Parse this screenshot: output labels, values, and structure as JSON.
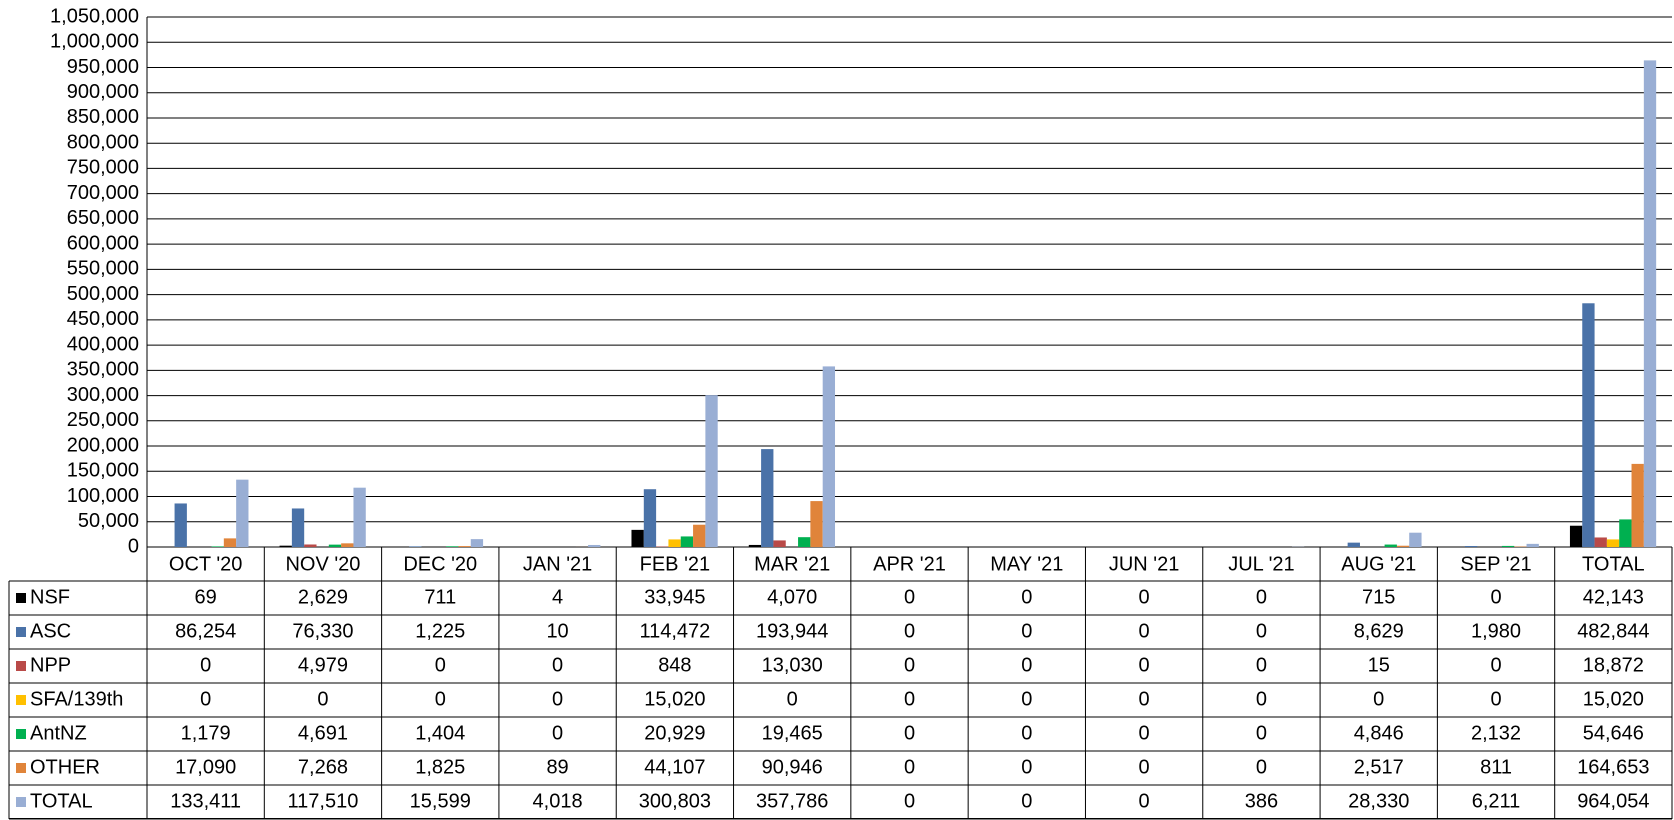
{
  "chart_data": {
    "type": "bar",
    "categories": [
      "OCT '20",
      "NOV '20",
      "DEC '20",
      "JAN '21",
      "FEB '21",
      "MAR '21",
      "APR '21",
      "MAY '21",
      "JUN '21",
      "JUL '21",
      "AUG '21",
      "SEP '21",
      "TOTAL"
    ],
    "series": [
      {
        "name": "NSF",
        "color": "#000000",
        "values": [
          69,
          2629,
          711,
          4,
          33945,
          4070,
          0,
          0,
          0,
          0,
          715,
          0,
          42143
        ],
        "value_labels": [
          "69",
          "2,629",
          "711",
          "4",
          "33,945",
          "4,070",
          "0",
          "0",
          "0",
          "0",
          "715",
          "0",
          "42,143"
        ]
      },
      {
        "name": "ASC",
        "color": "#4a72a8",
        "values": [
          86254,
          76330,
          1225,
          10,
          114472,
          193944,
          0,
          0,
          0,
          0,
          8629,
          1980,
          482844
        ],
        "value_labels": [
          "86,254",
          "76,330",
          "1,225",
          "10",
          "114,472",
          "193,944",
          "0",
          "0",
          "0",
          "0",
          "8,629",
          "1,980",
          "482,844"
        ]
      },
      {
        "name": "NPP",
        "color": "#b94a48",
        "values": [
          0,
          4979,
          0,
          0,
          848,
          13030,
          0,
          0,
          0,
          0,
          15,
          0,
          18872
        ],
        "value_labels": [
          "0",
          "4,979",
          "0",
          "0",
          "848",
          "13,030",
          "0",
          "0",
          "0",
          "0",
          "15",
          "0",
          "18,872"
        ]
      },
      {
        "name": "SFA/139th",
        "color": "#ffc000",
        "values": [
          0,
          0,
          0,
          0,
          15020,
          0,
          0,
          0,
          0,
          0,
          0,
          0,
          15020
        ],
        "value_labels": [
          "0",
          "0",
          "0",
          "0",
          "15,020",
          "0",
          "0",
          "0",
          "0",
          "0",
          "0",
          "0",
          "15,020"
        ]
      },
      {
        "name": "AntNZ",
        "color": "#00b050",
        "values": [
          1179,
          4691,
          1404,
          0,
          20929,
          19465,
          0,
          0,
          0,
          0,
          4846,
          2132,
          54646
        ],
        "value_labels": [
          "1,179",
          "4,691",
          "1,404",
          "0",
          "20,929",
          "19,465",
          "0",
          "0",
          "0",
          "0",
          "4,846",
          "2,132",
          "54,646"
        ]
      },
      {
        "name": "OTHER",
        "color": "#e0843a",
        "values": [
          17090,
          7268,
          1825,
          89,
          44107,
          90946,
          0,
          0,
          0,
          0,
          2517,
          811,
          164653
        ],
        "value_labels": [
          "17,090",
          "7,268",
          "1,825",
          "89",
          "44,107",
          "90,946",
          "0",
          "0",
          "0",
          "0",
          "2,517",
          "811",
          "164,653"
        ]
      },
      {
        "name": "TOTAL",
        "color": "#99aed4",
        "values": [
          133411,
          117510,
          15599,
          4018,
          300803,
          357786,
          0,
          0,
          0,
          386,
          28330,
          6211,
          964054
        ],
        "value_labels": [
          "133,411",
          "117,510",
          "15,599",
          "4,018",
          "300,803",
          "357,786",
          "0",
          "0",
          "0",
          "386",
          "28,330",
          "6,211",
          "964,054"
        ]
      }
    ],
    "ylim": [
      0,
      1050000
    ],
    "yticks": [
      0,
      {
        "value": 50000,
        "label": "50,000"
      },
      {
        "value": 100000,
        "label": "100,000"
      },
      {
        "value": 150000,
        "label": "150,000"
      },
      {
        "value": 200000,
        "label": "200,000"
      },
      {
        "value": 250000,
        "label": "250,000"
      },
      {
        "value": 300000,
        "label": "300,000"
      },
      {
        "value": 350000,
        "label": "350,000"
      },
      {
        "value": 400000,
        "label": "400,000"
      },
      {
        "value": 450000,
        "label": "450,000"
      },
      {
        "value": 500000,
        "label": "500,000"
      },
      {
        "value": 550000,
        "label": "550,000"
      },
      {
        "value": 600000,
        "label": "600,000"
      },
      {
        "value": 650000,
        "label": "650,000"
      },
      {
        "value": 700000,
        "label": "700,000"
      },
      {
        "value": 750000,
        "label": "750,000"
      },
      {
        "value": 800000,
        "label": "800,000"
      },
      {
        "value": 850000,
        "label": "850,000"
      },
      {
        "value": 900000,
        "label": "900,000"
      },
      {
        "value": 950000,
        "label": "950,000"
      },
      {
        "value": 1000000,
        "label": "1,000,000"
      },
      {
        "value": 1050000,
        "label": "1,050,000"
      }
    ],
    "grid": true
  }
}
